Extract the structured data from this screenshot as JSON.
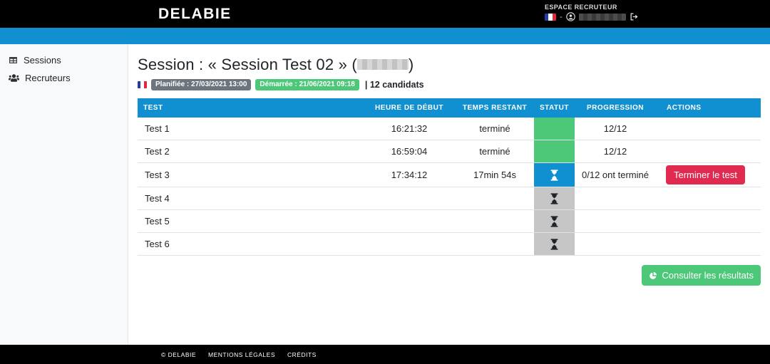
{
  "header": {
    "logo": "DELABIE",
    "espace_label": "ESPACE RECRUTEUR",
    "user_separator": "-"
  },
  "sidebar": {
    "items": [
      {
        "label": "Sessions",
        "icon": "table-grid-icon"
      },
      {
        "label": "Recruteurs",
        "icon": "users-icon"
      }
    ]
  },
  "main": {
    "title_prefix": "Session : « Session Test 02 » (",
    "title_suffix": ")",
    "badges": {
      "planned": "Planifiée : 27/03/2021 13:00",
      "started": "Démarrée : 21/06/2021 09:18",
      "candidates": "| 12 candidats"
    },
    "table": {
      "headers": [
        "Test",
        "Heure de début",
        "Temps restant",
        "Statut",
        "Progression",
        "Actions"
      ],
      "rows": [
        {
          "test": "Test 1",
          "start": "16:21:32",
          "remaining": "terminé",
          "status": "done",
          "progression": "12/12",
          "action": ""
        },
        {
          "test": "Test 2",
          "start": "16:59:04",
          "remaining": "terminé",
          "status": "done",
          "progression": "12/12",
          "action": ""
        },
        {
          "test": "Test 3",
          "start": "17:34:12",
          "remaining": "17min 54s",
          "status": "running",
          "progression": "0/12 ont terminé",
          "action": "Terminer le test"
        },
        {
          "test": "Test 4",
          "start": "",
          "remaining": "",
          "status": "pending",
          "progression": "",
          "action": ""
        },
        {
          "test": "Test 5",
          "start": "",
          "remaining": "",
          "status": "pending",
          "progression": "",
          "action": ""
        },
        {
          "test": "Test 6",
          "start": "",
          "remaining": "",
          "status": "pending",
          "progression": "",
          "action": ""
        }
      ]
    },
    "results_button": "Consulter les résultats"
  },
  "footer": {
    "items": [
      "© DELABIE",
      "MENTIONS LÉGALES",
      "CRÉDITS"
    ]
  },
  "colors": {
    "accent_blue": "#1090d0",
    "success_green": "#4dc778",
    "danger_red": "#e12a4f",
    "badge_gray": "#6c757d",
    "pending_gray": "#c6c6c6"
  }
}
